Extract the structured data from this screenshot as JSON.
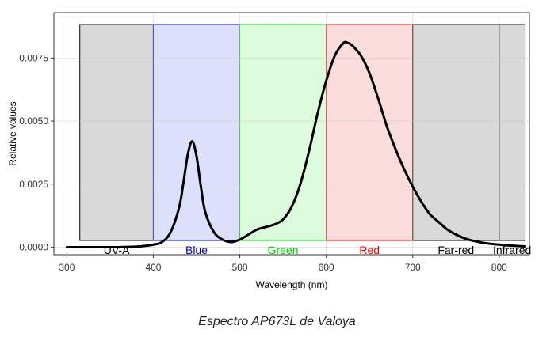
{
  "caption": "Espectro AP673L de Valoya",
  "chart_data": {
    "type": "line",
    "xlabel": "Wavelength (nm)",
    "ylabel": "Relative values",
    "xlim": [
      285,
      835
    ],
    "ylim": [
      -0.0003,
      0.0093
    ],
    "x_ticks": [
      300,
      400,
      500,
      600,
      700,
      800
    ],
    "y_ticks": [
      0.0,
      0.0025,
      0.005,
      0.0075
    ],
    "y_tick_labels": [
      "0.0000",
      "0.0025",
      "0.0050",
      "0.0075"
    ],
    "grid": true,
    "bands": [
      {
        "label": "UV-A",
        "x0": 315,
        "x1": 400,
        "fill": "#d9d9d9",
        "edge": "#000000",
        "text_color": "#000000"
      },
      {
        "label": "Blue",
        "x0": 400,
        "x1": 500,
        "fill": "#dde0fb",
        "edge": "#0000cc",
        "text_color": "#0000cc"
      },
      {
        "label": "Green",
        "x0": 500,
        "x1": 600,
        "fill": "#ddfbdd",
        "edge": "#00dd00",
        "text_color": "#00cc00"
      },
      {
        "label": "Red",
        "x0": 600,
        "x1": 700,
        "fill": "#fbdcdc",
        "edge": "#ff0000",
        "text_color": "#ee0000"
      },
      {
        "label": "Far-red",
        "x0": 700,
        "x1": 800,
        "fill": "#d9d9d9",
        "edge": "#000000",
        "text_color": "#000000"
      },
      {
        "label": "Infrared",
        "x0": 800,
        "x1": 830,
        "fill": "#d9d9d9",
        "edge": "#000000",
        "text_color": "#000000"
      }
    ],
    "series": [
      {
        "color": "#000000",
        "x": [
          300,
          320,
          340,
          360,
          380,
          390,
          400,
          410,
          420,
          430,
          435,
          440,
          445,
          450,
          455,
          460,
          470,
          480,
          490,
          500,
          510,
          520,
          530,
          540,
          550,
          560,
          570,
          580,
          590,
          600,
          610,
          620,
          625,
          630,
          640,
          650,
          660,
          670,
          680,
          690,
          700,
          710,
          720,
          730,
          740,
          750,
          760,
          770,
          780,
          790,
          800,
          810,
          820,
          830
        ],
        "y": [
          0.0,
          0.0,
          0.0,
          0.0,
          2e-05,
          5e-05,
          0.0001,
          0.0002,
          0.0006,
          0.0016,
          0.0026,
          0.0037,
          0.0042,
          0.0036,
          0.0024,
          0.0014,
          0.0006,
          0.0003,
          0.0002,
          0.0003,
          0.0005,
          0.0007,
          0.0008,
          0.0009,
          0.0011,
          0.0016,
          0.0025,
          0.0038,
          0.0053,
          0.0066,
          0.0076,
          0.0081,
          0.0081,
          0.008,
          0.0076,
          0.0069,
          0.0059,
          0.0048,
          0.0039,
          0.0031,
          0.0024,
          0.0018,
          0.0013,
          0.001,
          0.0007,
          0.0005,
          0.00035,
          0.00025,
          0.00018,
          0.00013,
          0.0001,
          7e-05,
          5e-05,
          3e-05
        ]
      }
    ]
  }
}
